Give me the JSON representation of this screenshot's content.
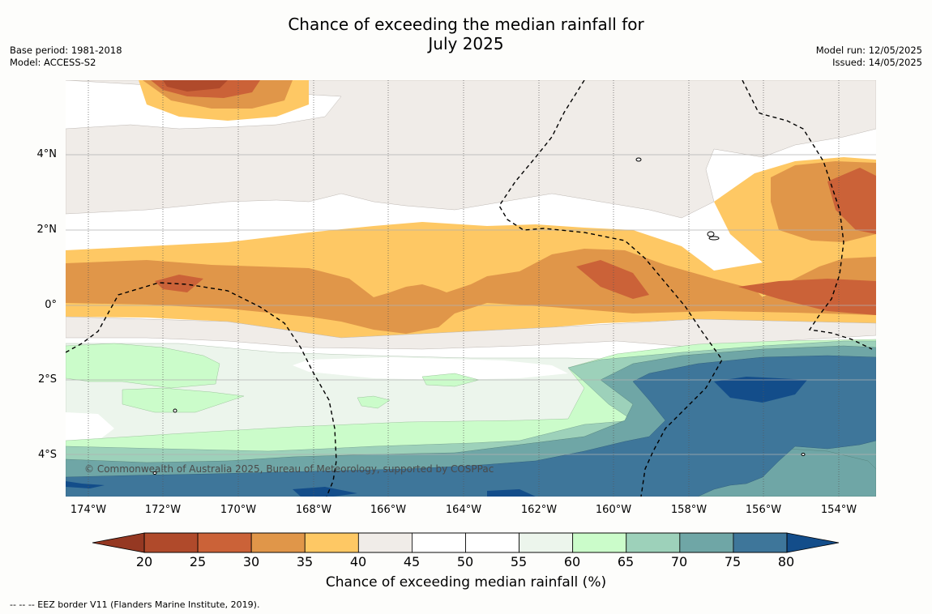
{
  "header": {
    "title_line1": "Chance of exceeding the median rainfall for",
    "title_line2": "July 2025",
    "base_period": "Base period: 1981-2018",
    "model": "Model: ACCESS-S2",
    "model_run": "Model run: 12/05/2025",
    "issued": "Issued: 14/05/2025"
  },
  "map": {
    "lat_labels": [
      "4°N",
      "2°N",
      "0°",
      "2°S",
      "4°S"
    ],
    "lon_labels": [
      "174°W",
      "172°W",
      "170°W",
      "168°W",
      "166°W",
      "164°W",
      "162°W",
      "160°W",
      "158°W",
      "156°W",
      "154°W"
    ],
    "copyright": "© Commonwealth of Australia 2025, Bureau of Meteorology, supported by COSPPac",
    "footnote": "--  --  -- EEZ border V11 (Flanders Marine Institute, 2019).",
    "lon_range": [
      -174.6,
      -152.9
    ],
    "lat_range": [
      -5.2,
      5.9
    ]
  },
  "colorbar": {
    "label": "Chance of exceeding median rainfall (%)",
    "ticks": [
      "20",
      "25",
      "30",
      "35",
      "40",
      "45",
      "50",
      "55",
      "60",
      "65",
      "70",
      "75",
      "80"
    ],
    "colors": [
      "#b04a2b",
      "#cb6238",
      "#e09649",
      "#fec864",
      "#f0ece8",
      "#ffffff",
      "#ffffff",
      "#ecf5ec",
      "#cbfcca",
      "#9dd1ba",
      "#6fa6a6",
      "#3e769a"
    ],
    "low_extend_color": "#953822",
    "high_extend_color": "#134d8a"
  }
}
